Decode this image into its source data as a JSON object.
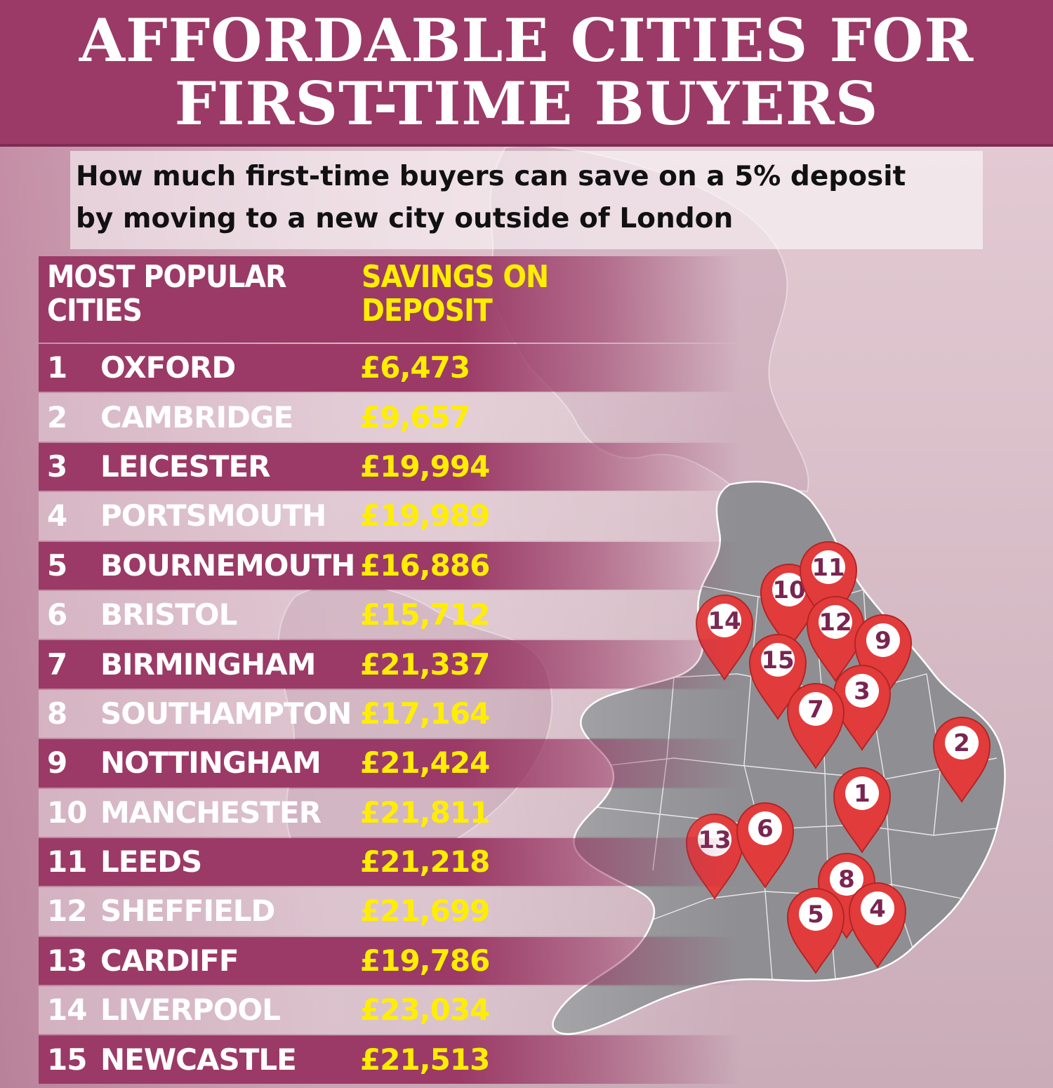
{
  "title": {
    "line1": "AFFORDABLE CITIES FOR",
    "line2": "FIRST-TIME BUYERS"
  },
  "subtitle": {
    "line1": "How much first-time buyers can save on a 5% deposit",
    "line2": "by moving to a new city outside of London"
  },
  "table": {
    "header_city": "MOST POPULAR CITIES",
    "header_savings": "SAVINGS ON DEPOSIT",
    "rows": [
      {
        "rank": "1",
        "city": "OXFORD",
        "saving": "£6,473"
      },
      {
        "rank": "2",
        "city": "CAMBRIDGE",
        "saving": "£9,657"
      },
      {
        "rank": "3",
        "city": "LEICESTER",
        "saving": "£19,994"
      },
      {
        "rank": "4",
        "city": "PORTSMOUTH",
        "saving": "£19,989"
      },
      {
        "rank": "5",
        "city": "BOURNEMOUTH",
        "saving": "£16,886"
      },
      {
        "rank": "6",
        "city": "BRISTOL",
        "saving": "£15,712"
      },
      {
        "rank": "7",
        "city": "BIRMINGHAM",
        "saving": "£21,337"
      },
      {
        "rank": "8",
        "city": "SOUTHAMPTON",
        "saving": "£17,164"
      },
      {
        "rank": "9",
        "city": "NOTTINGHAM",
        "saving": "£21,424"
      },
      {
        "rank": "10",
        "city": "MANCHESTER",
        "saving": "£21,811"
      },
      {
        "rank": "11",
        "city": "LEEDS",
        "saving": "£21,218"
      },
      {
        "rank": "12",
        "city": "SHEFFIELD",
        "saving": "£21,699"
      },
      {
        "rank": "13",
        "city": "CARDIFF",
        "saving": "£19,786"
      },
      {
        "rank": "14",
        "city": "LIVERPOOL",
        "saving": "£23,034"
      },
      {
        "rank": "15",
        "city": "NEWCASTLE",
        "saving": "£21,513"
      }
    ]
  },
  "map": {
    "pins": [
      "14",
      "10",
      "11",
      "12",
      "9",
      "15",
      "3",
      "7",
      "2",
      "1",
      "13",
      "6",
      "8",
      "5",
      "4"
    ]
  },
  "colors": {
    "brand": "#9b3a66",
    "highlight": "#ffee00",
    "pin": "#e23b3b",
    "map_land": "#8f8f93"
  }
}
